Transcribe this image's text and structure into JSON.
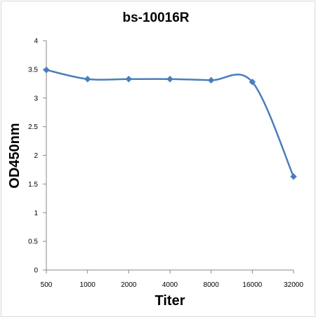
{
  "chart_data": {
    "type": "line",
    "title": "bs-10016R",
    "xlabel": "Titer",
    "ylabel": "OD450nm",
    "categories": [
      "500",
      "1000",
      "2000",
      "4000",
      "8000",
      "16000",
      "32000"
    ],
    "series": [
      {
        "values": [
          3.49,
          3.33,
          3.33,
          3.33,
          3.31,
          3.28,
          1.63
        ]
      }
    ],
    "ylim": [
      0,
      4
    ],
    "yticks": [
      "0",
      "0.5",
      "1",
      "1.5",
      "2",
      "2.5",
      "3",
      "3.5",
      "4"
    ],
    "ytick_values": [
      0,
      0.5,
      1,
      1.5,
      2,
      2.5,
      3,
      3.5,
      4
    ],
    "grid": false,
    "legend": "none",
    "smooth": true,
    "marker": "diamond",
    "colors": {
      "series": "#4a7ebb",
      "axis": "#888888"
    }
  }
}
